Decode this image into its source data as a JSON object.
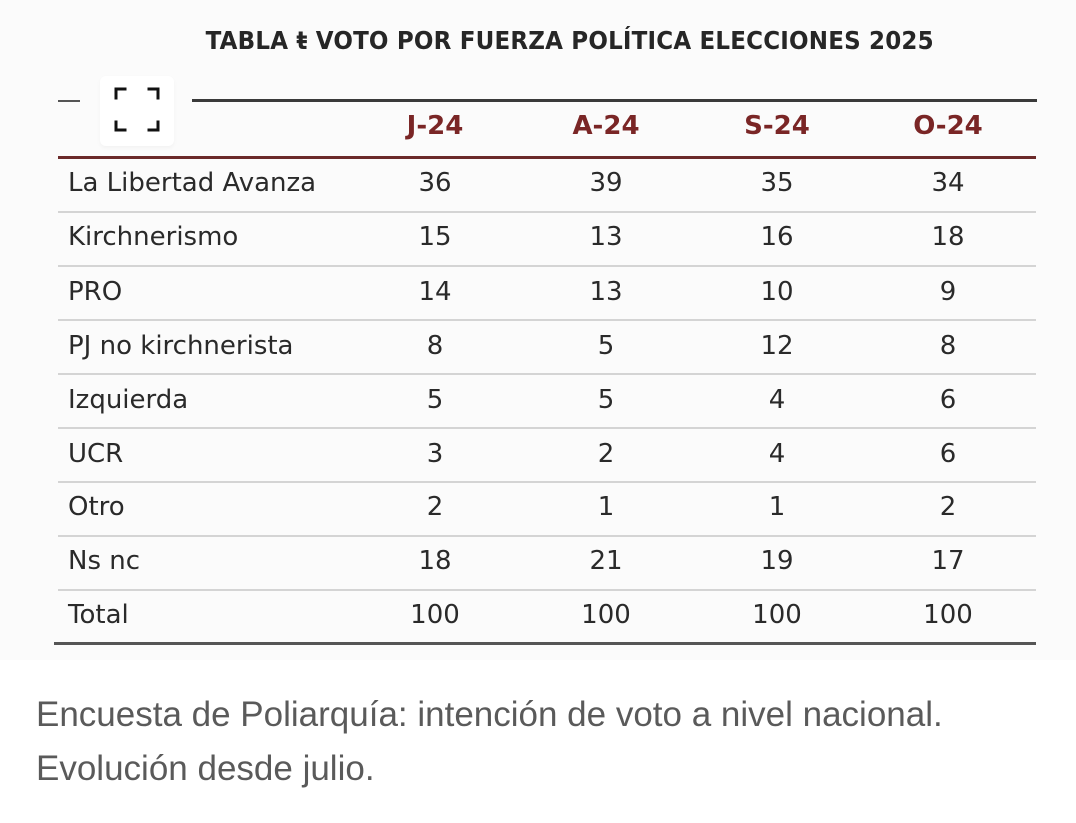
{
  "table": {
    "title": "TABLA ŧ VOTO POR FUERZA POLÍTICA ELECCIONES 2025",
    "columns": [
      "J-24",
      "A-24",
      "S-24",
      "O-24"
    ],
    "rows": [
      {
        "label": "La Libertad Avanza",
        "values": [
          "36",
          "39",
          "35",
          "34"
        ]
      },
      {
        "label": "Kirchnerismo",
        "values": [
          "15",
          "13",
          "16",
          "18"
        ]
      },
      {
        "label": "PRO",
        "values": [
          "14",
          "13",
          "10",
          "9"
        ]
      },
      {
        "label": "PJ no kirchnerista",
        "values": [
          "8",
          "5",
          "12",
          "8"
        ]
      },
      {
        "label": "Izquierda",
        "values": [
          "5",
          "5",
          "4",
          "6"
        ]
      },
      {
        "label": "UCR",
        "values": [
          "3",
          "2",
          "4",
          "6"
        ]
      },
      {
        "label": "Otro",
        "values": [
          "2",
          "1",
          "1",
          "2"
        ]
      },
      {
        "label": "Ns nc",
        "values": [
          "18",
          "21",
          "19",
          "17"
        ]
      },
      {
        "label": "Total",
        "values": [
          "100",
          "100",
          "100",
          "100"
        ]
      }
    ],
    "colors": {
      "header_text": "#7a2626",
      "header_rule": "#6b2a2a",
      "body_text": "#2a2a2a"
    }
  },
  "expand_button": {
    "icon": "expand-icon"
  },
  "caption": "Encuesta de Poliarquía: intención de voto a nivel nacional. Evolución desde julio."
}
